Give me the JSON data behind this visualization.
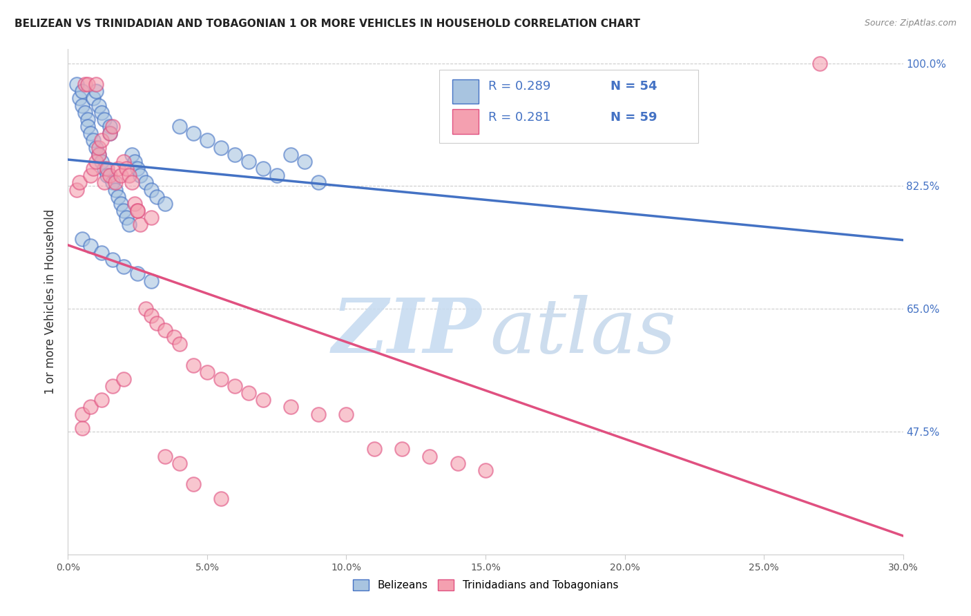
{
  "title": "BELIZEAN VS TRINIDADIAN AND TOBAGONIAN 1 OR MORE VEHICLES IN HOUSEHOLD CORRELATION CHART",
  "source": "Source: ZipAtlas.com",
  "ylabel": "1 or more Vehicles in Household",
  "xmin": 0.0,
  "xmax": 30.0,
  "ymin": 30.0,
  "ymax": 102.0,
  "yticks": [
    47.5,
    65.0,
    82.5,
    100.0
  ],
  "ytick_labels": [
    "47.5%",
    "65.0%",
    "82.5%",
    "100.0%"
  ],
  "xtick_positions": [
    0,
    5,
    10,
    15,
    20,
    25,
    30
  ],
  "xtick_labels": [
    "0.0%",
    "5.0%",
    "10.0%",
    "15.0%",
    "20.0%",
    "25.0%",
    "30.0%"
  ],
  "legend_R_belizean": "R = 0.289",
  "legend_N_belizean": "N = 54",
  "legend_R_trinidadian": "R = 0.281",
  "legend_N_trinidadian": "N = 59",
  "color_belizean": "#a8c4e0",
  "color_trinidadian": "#f4a0b0",
  "line_color_belizean": "#4472c4",
  "line_color_trinidadian": "#e05080",
  "bel_x": [
    0.3,
    0.4,
    0.5,
    0.5,
    0.6,
    0.7,
    0.7,
    0.8,
    0.9,
    0.9,
    1.0,
    1.0,
    1.1,
    1.1,
    1.2,
    1.2,
    1.3,
    1.3,
    1.4,
    1.5,
    1.5,
    1.6,
    1.7,
    1.8,
    1.9,
    2.0,
    2.1,
    2.2,
    2.3,
    2.4,
    2.5,
    2.6,
    2.8,
    3.0,
    3.2,
    3.5,
    4.0,
    4.5,
    5.0,
    5.5,
    6.0,
    6.5,
    7.0,
    7.5,
    8.0,
    8.5,
    9.0,
    0.5,
    0.8,
    1.2,
    1.6,
    2.0,
    2.5,
    3.0
  ],
  "bel_y": [
    97,
    95,
    96,
    94,
    93,
    92,
    91,
    90,
    89,
    95,
    88,
    96,
    87,
    94,
    86,
    93,
    85,
    92,
    84,
    91,
    90,
    83,
    82,
    81,
    80,
    79,
    78,
    77,
    87,
    86,
    85,
    84,
    83,
    82,
    81,
    80,
    91,
    90,
    89,
    88,
    87,
    86,
    85,
    84,
    87,
    86,
    83,
    75,
    74,
    73,
    72,
    71,
    70,
    69
  ],
  "tri_x": [
    0.3,
    0.4,
    0.5,
    0.6,
    0.7,
    0.8,
    0.9,
    1.0,
    1.0,
    1.1,
    1.1,
    1.2,
    1.3,
    1.4,
    1.5,
    1.5,
    1.6,
    1.7,
    1.8,
    1.9,
    2.0,
    2.1,
    2.2,
    2.3,
    2.4,
    2.5,
    2.6,
    2.8,
    3.0,
    3.2,
    3.5,
    3.8,
    4.0,
    4.5,
    5.0,
    5.5,
    6.0,
    6.5,
    7.0,
    8.0,
    9.0,
    10.0,
    11.0,
    12.0,
    13.0,
    14.0,
    15.0,
    0.5,
    0.8,
    1.2,
    1.6,
    2.0,
    2.5,
    3.0,
    3.5,
    4.0,
    4.5,
    5.5,
    27.0
  ],
  "tri_y": [
    82,
    83,
    50,
    97,
    97,
    84,
    85,
    86,
    97,
    87,
    88,
    89,
    83,
    85,
    84,
    90,
    91,
    83,
    85,
    84,
    86,
    85,
    84,
    83,
    80,
    79,
    77,
    65,
    64,
    63,
    62,
    61,
    60,
    57,
    56,
    55,
    54,
    53,
    52,
    51,
    50,
    50,
    45,
    45,
    44,
    43,
    42,
    48,
    51,
    52,
    54,
    55,
    79,
    78,
    44,
    43,
    40,
    38,
    100
  ]
}
